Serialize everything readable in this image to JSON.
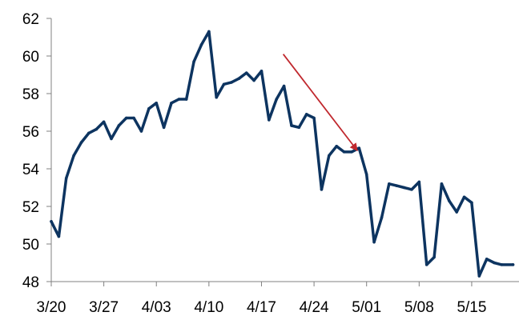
{
  "chart_data": {
    "type": "line",
    "title": "",
    "xlabel": "",
    "ylabel": "",
    "ylim": [
      48,
      62
    ],
    "yticks": [
      "48",
      "50",
      "52",
      "54",
      "56",
      "58",
      "60",
      "62"
    ],
    "xticks": [
      {
        "label": "3/20",
        "day": 0
      },
      {
        "label": "3/27",
        "day": 7
      },
      {
        "label": "4/03",
        "day": 14
      },
      {
        "label": "4/10",
        "day": 21
      },
      {
        "label": "4/17",
        "day": 28
      },
      {
        "label": "4/24",
        "day": 35
      },
      {
        "label": "5/01",
        "day": 42
      },
      {
        "label": "5/08",
        "day": 49
      },
      {
        "label": "5/15",
        "day": 56
      }
    ],
    "xlim_days": [
      0,
      62.3
    ],
    "grid": false,
    "legend": "none",
    "series": [
      {
        "color": "#0d3460",
        "points": [
          [
            0,
            51.2
          ],
          [
            1,
            50.4
          ],
          [
            2,
            53.5
          ],
          [
            3,
            54.7
          ],
          [
            4,
            55.4
          ],
          [
            5,
            55.9
          ],
          [
            6,
            56.1
          ],
          [
            7,
            56.5
          ],
          [
            8,
            55.6
          ],
          [
            9,
            56.3
          ],
          [
            10,
            56.7
          ],
          [
            11,
            56.7
          ],
          [
            12,
            56.0
          ],
          [
            13,
            57.2
          ],
          [
            14,
            57.5
          ],
          [
            15,
            56.2
          ],
          [
            16,
            57.5
          ],
          [
            17,
            57.7
          ],
          [
            18,
            57.7
          ],
          [
            19,
            59.7
          ],
          [
            20,
            60.6
          ],
          [
            21,
            61.3
          ],
          [
            22,
            57.8
          ],
          [
            23,
            58.5
          ],
          [
            24,
            58.6
          ],
          [
            25,
            58.8
          ],
          [
            26,
            59.1
          ],
          [
            27,
            58.7
          ],
          [
            28,
            59.2
          ],
          [
            29,
            56.6
          ],
          [
            30,
            57.7
          ],
          [
            31,
            58.4
          ],
          [
            32,
            56.3
          ],
          [
            33,
            56.2
          ],
          [
            34,
            56.9
          ],
          [
            35,
            56.7
          ],
          [
            36,
            52.9
          ],
          [
            37,
            54.7
          ],
          [
            38,
            55.2
          ],
          [
            39,
            54.9
          ],
          [
            40,
            54.9
          ],
          [
            41,
            55.1
          ],
          [
            42,
            53.7
          ],
          [
            43,
            50.1
          ],
          [
            44,
            51.4
          ],
          [
            45,
            53.2
          ],
          [
            46,
            53.1
          ],
          [
            47,
            53.0
          ],
          [
            48,
            52.9
          ],
          [
            49,
            53.3
          ],
          [
            50,
            48.9
          ],
          [
            51,
            49.3
          ],
          [
            52,
            53.2
          ],
          [
            53,
            52.3
          ],
          [
            54,
            51.7
          ],
          [
            55,
            52.5
          ],
          [
            56,
            52.2
          ],
          [
            57,
            48.3
          ],
          [
            58,
            49.2
          ],
          [
            59,
            49.0
          ],
          [
            60,
            48.9
          ],
          [
            61.5,
            48.9
          ]
        ]
      }
    ],
    "annotations": [
      {
        "type": "arrow",
        "color": "#c0282e",
        "from": [
          30.9,
          60.1
        ],
        "to": [
          40.7,
          55.0
        ]
      }
    ]
  }
}
